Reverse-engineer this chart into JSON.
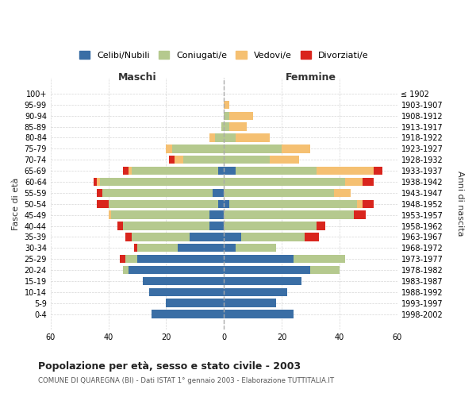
{
  "age_groups": [
    "100+",
    "95-99",
    "90-94",
    "85-89",
    "80-84",
    "75-79",
    "70-74",
    "65-69",
    "60-64",
    "55-59",
    "50-54",
    "45-49",
    "40-44",
    "35-39",
    "30-34",
    "25-29",
    "20-24",
    "15-19",
    "10-14",
    "5-9",
    "0-4"
  ],
  "birth_years": [
    "≤ 1902",
    "1903-1907",
    "1908-1912",
    "1913-1917",
    "1918-1922",
    "1923-1927",
    "1928-1932",
    "1933-1937",
    "1938-1942",
    "1943-1947",
    "1948-1952",
    "1953-1957",
    "1958-1962",
    "1963-1967",
    "1968-1972",
    "1973-1977",
    "1978-1982",
    "1983-1987",
    "1988-1992",
    "1993-1997",
    "1998-2002"
  ],
  "colors": {
    "celibi": "#3a6ea5",
    "coniugati": "#b5c98e",
    "vedovi": "#f5c072",
    "divorziati": "#d9251d"
  },
  "maschi": {
    "celibi": [
      0,
      0,
      0,
      0,
      0,
      0,
      0,
      2,
      0,
      4,
      2,
      5,
      5,
      12,
      16,
      30,
      33,
      28,
      26,
      20,
      25
    ],
    "coniugati": [
      0,
      0,
      0,
      1,
      3,
      18,
      14,
      30,
      43,
      38,
      38,
      34,
      30,
      20,
      14,
      4,
      2,
      0,
      0,
      0,
      0
    ],
    "vedovi": [
      0,
      0,
      0,
      0,
      2,
      2,
      3,
      1,
      1,
      0,
      0,
      1,
      0,
      0,
      0,
      0,
      0,
      0,
      0,
      0,
      0
    ],
    "divorziati": [
      0,
      0,
      0,
      0,
      0,
      0,
      2,
      2,
      1,
      2,
      4,
      0,
      2,
      2,
      1,
      2,
      0,
      0,
      0,
      0,
      0
    ]
  },
  "femmine": {
    "celibi": [
      0,
      0,
      0,
      0,
      0,
      0,
      0,
      4,
      0,
      0,
      2,
      0,
      0,
      6,
      4,
      24,
      30,
      27,
      22,
      18,
      24
    ],
    "coniugati": [
      0,
      0,
      2,
      2,
      4,
      20,
      16,
      28,
      42,
      38,
      44,
      45,
      32,
      22,
      14,
      18,
      10,
      0,
      0,
      0,
      0
    ],
    "vedovi": [
      0,
      2,
      8,
      6,
      12,
      10,
      10,
      20,
      6,
      6,
      2,
      0,
      0,
      0,
      0,
      0,
      0,
      0,
      0,
      0,
      0
    ],
    "divorziati": [
      0,
      0,
      0,
      0,
      0,
      0,
      0,
      3,
      4,
      0,
      4,
      4,
      3,
      5,
      0,
      0,
      0,
      0,
      0,
      0,
      0
    ]
  },
  "title": "Popolazione per età, sesso e stato civile - 2003",
  "subtitle": "COMUNE DI QUAREGNA (BI) - Dati ISTAT 1° gennaio 2003 - Elaborazione TUTTITALIA.IT",
  "ylabel_left": "Fasce di età",
  "ylabel_right": "Anni di nascita",
  "xlim": 60,
  "bg_color": "#ffffff",
  "grid_color": "#cccccc",
  "legend_labels": [
    "Celibi/Nubili",
    "Coniugati/e",
    "Vedovi/e",
    "Divorziati/e"
  ]
}
